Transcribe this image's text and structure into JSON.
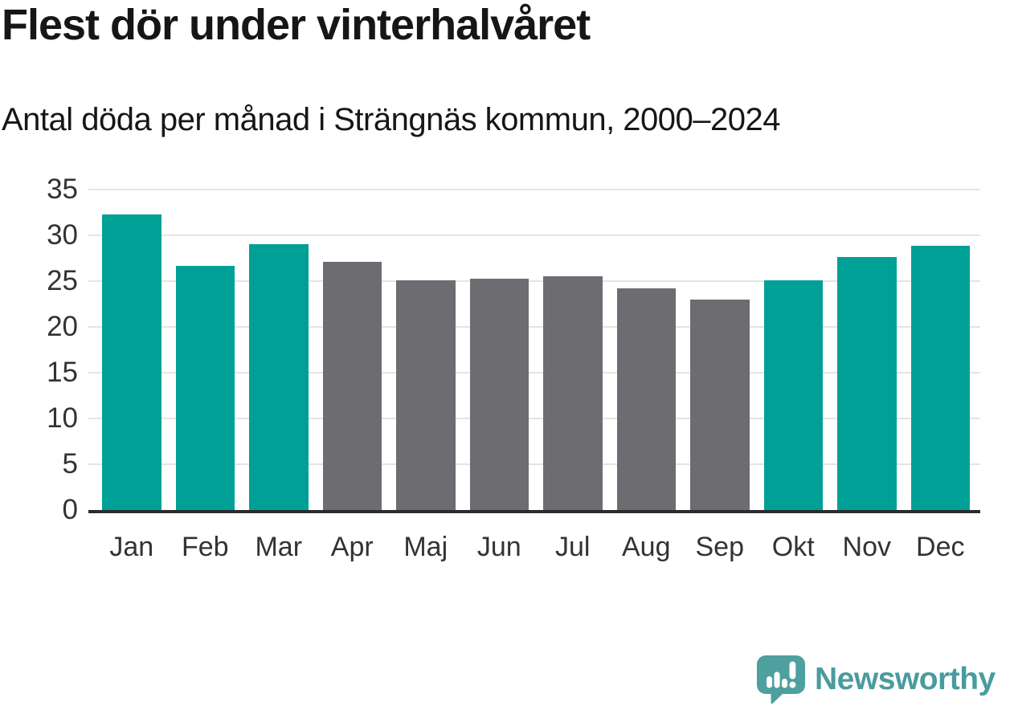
{
  "chart_data": {
    "type": "bar",
    "title": "Flest dör under vinterhalvåret",
    "subtitle": "Antal döda per månad i Strängnäs kommun, 2000–2024",
    "categories": [
      "Jan",
      "Feb",
      "Mar",
      "Apr",
      "Maj",
      "Jun",
      "Jul",
      "Aug",
      "Sep",
      "Okt",
      "Nov",
      "Dec"
    ],
    "values": [
      32.3,
      26.7,
      29.0,
      27.1,
      25.1,
      25.3,
      25.5,
      24.2,
      23.0,
      25.1,
      27.6,
      28.9
    ],
    "bar_colors": [
      "#00a096",
      "#00a096",
      "#00a096",
      "#6d6c71",
      "#6d6c71",
      "#6d6c71",
      "#6d6c71",
      "#6d6c71",
      "#6d6c71",
      "#00a096",
      "#00a096",
      "#00a096"
    ],
    "xlabel": "",
    "ylabel": "",
    "ylim": [
      0,
      35
    ],
    "yticks": [
      0,
      5,
      10,
      15,
      20,
      25,
      30,
      35
    ],
    "grid": "horizontal",
    "legend": false
  },
  "colors": {
    "winter_bar": "#00a096",
    "summer_bar": "#6d6c71",
    "gridline": "#e4e4e4",
    "axis_line": "#2b2b2b",
    "text_dark": "#161616",
    "tick_label": "#333333",
    "logo_teal": "#4a9b9d",
    "logo_icon_fill": "#4f9f9f"
  },
  "footer": {
    "brand": "Newsworthy",
    "logo_icon": "speech-bubble-with-bar-chart-and-exclamation"
  }
}
